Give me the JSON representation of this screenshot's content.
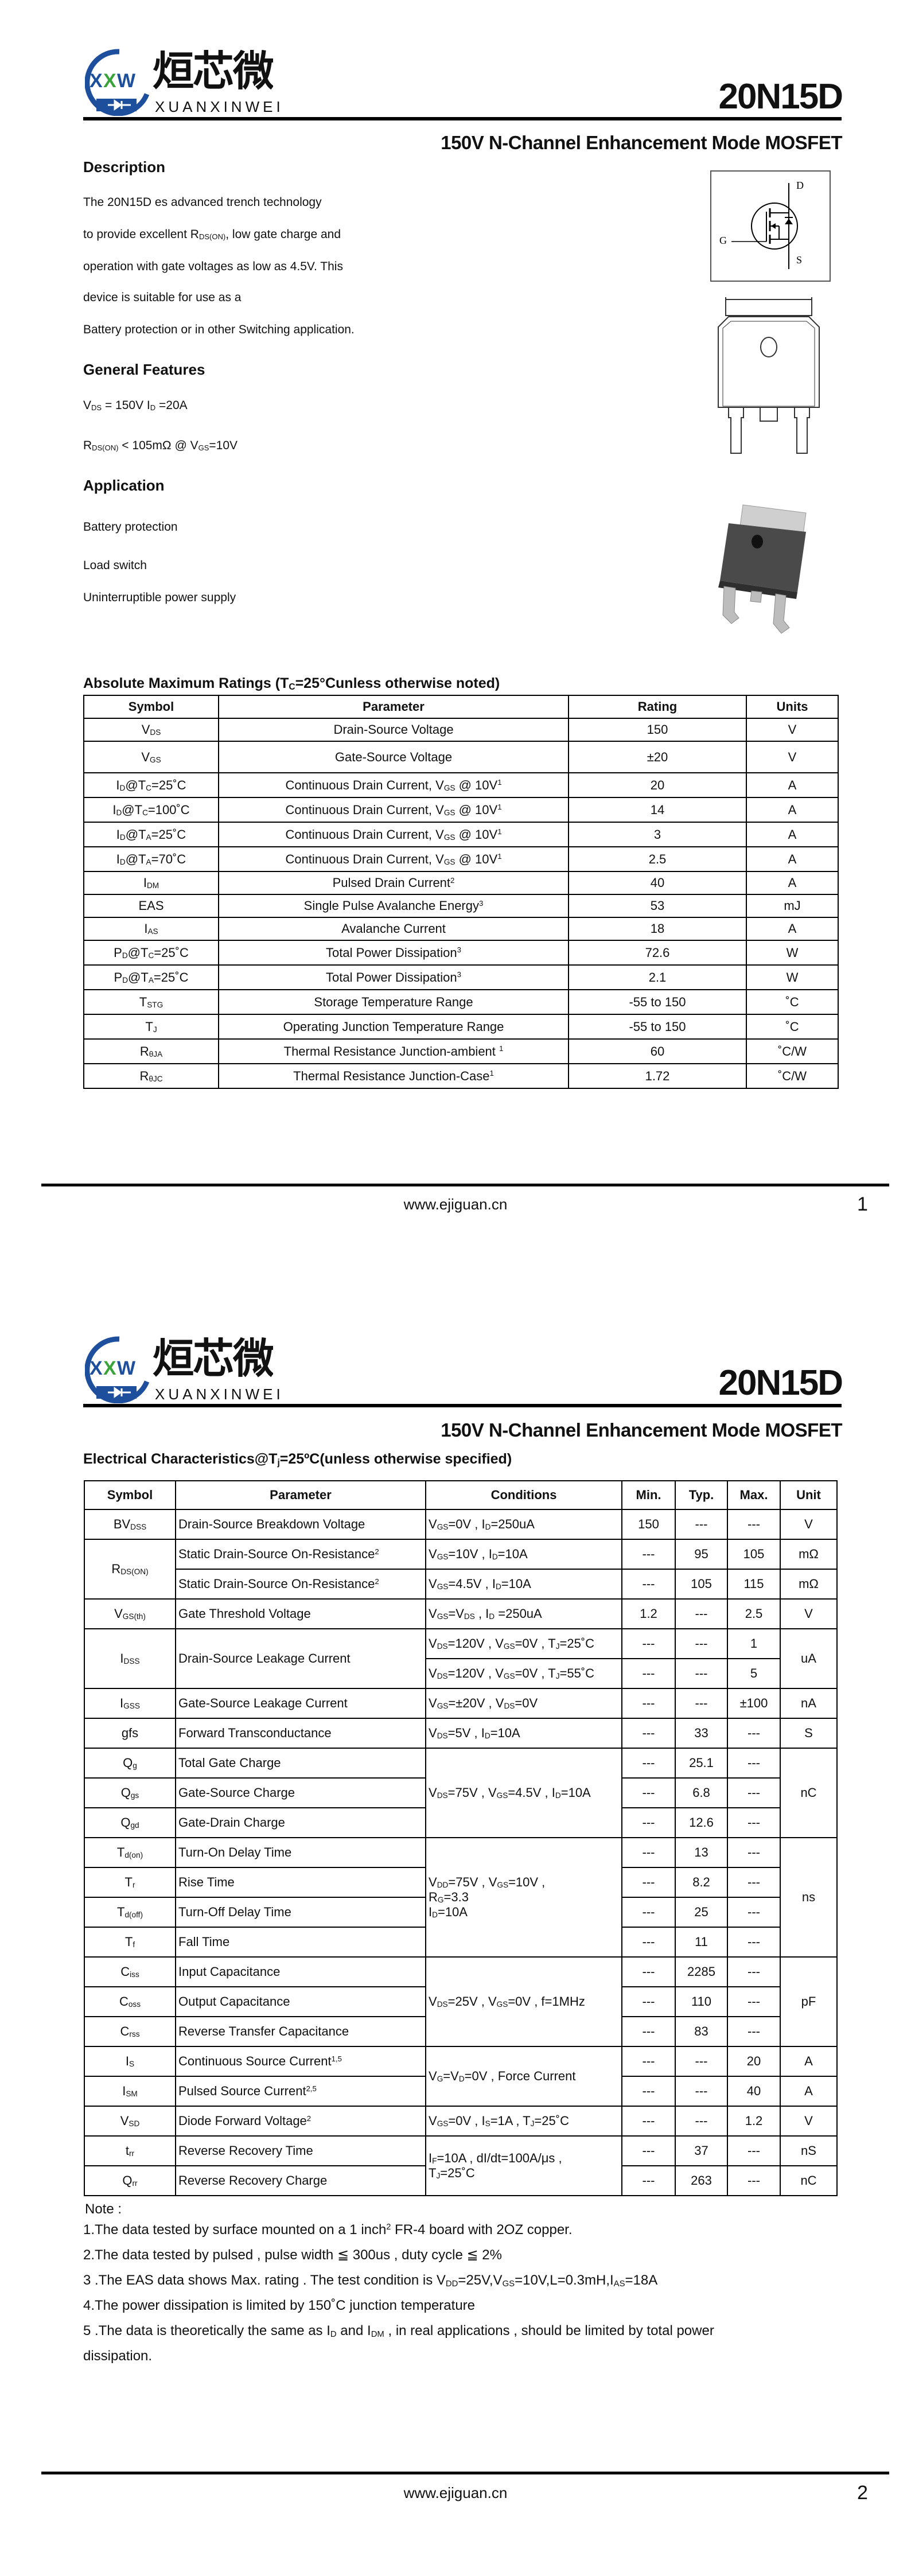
{
  "logo": {
    "cn": "烜芯微",
    "en": "XUANXINWEI",
    "mark": "XXW",
    "blue": "#1d4f9c",
    "green": "#3aa33a"
  },
  "part_number": "20N15D",
  "subtitle": "150V N-Channel Enhancement Mode MOSFET",
  "page1": {
    "description": {
      "heading": "Description",
      "lines": [
        "The  20N15D es advanced trench technology",
        "to provide excellent R_{DS(ON)}, low gate charge and",
        "operation with gate voltages as low as 4.5V. This",
        "device is suitable for use as a",
        "Battery protection or in other Switching application."
      ]
    },
    "features": {
      "heading": "General Features",
      "lines": [
        "V_{DS} = 150V  I_{D} =20A",
        "R_{DS(ON)} < 105mΩ @ V_{GS}=10V"
      ]
    },
    "application": {
      "heading": "Application",
      "items": [
        "Battery protection",
        "Load switch",
        "Uninterruptible power supply"
      ]
    },
    "symbol_labels": {
      "drain": "D",
      "gate": "G",
      "source": "S"
    },
    "abs_max": {
      "title": "Absolute Maximum Ratings (T_{C}=25°Cunless otherwise noted)",
      "headers": [
        "Symbol",
        "Parameter",
        "Rating",
        "Units"
      ],
      "rows": [
        [
          "V_{DS}",
          "Drain-Source Voltage",
          "150",
          "V"
        ],
        [
          "V_{GS}",
          "Gate-Source Voltage",
          "±20",
          "V"
        ],
        [
          "I_{D}@T_{C}=25˚C",
          "Continuous Drain Current, V_{GS} @ 10V^{1}",
          "20",
          "A"
        ],
        [
          "I_{D}@T_{C}=100˚C",
          "Continuous Drain Current, V_{GS} @ 10V^{1}",
          "14",
          "A"
        ],
        [
          "I_{D}@T_{A}=25˚C",
          "Continuous Drain Current, V_{GS} @ 10V^{1}",
          "3",
          "A"
        ],
        [
          "I_{D}@T_{A}=70˚C",
          "Continuous Drain Current, V_{GS} @ 10V^{1}",
          "2.5",
          "A"
        ],
        [
          "I_{DM}",
          "Pulsed Drain Current^{2}",
          "40",
          "A"
        ],
        [
          "EAS",
          "Single Pulse Avalanche Energy^{3}",
          "53",
          "mJ"
        ],
        [
          "I_{AS}",
          "Avalanche Current",
          "18",
          "A"
        ],
        [
          "P_{D}@T_{C}=25˚C",
          "Total Power Dissipation^{3}",
          "72.6",
          "W"
        ],
        [
          "P_{D}@T_{A}=25˚C",
          "Total Power Dissipation^{3}",
          "2.1",
          "W"
        ],
        [
          "T_{STG}",
          "Storage Temperature Range",
          "-55 to 150",
          "˚C"
        ],
        [
          "T_{J}",
          "Operating Junction Temperature Range",
          "-55 to 150",
          "˚C"
        ],
        [
          "R_{θJA}",
          "Thermal Resistance Junction-ambient ^{1}",
          "60",
          "˚C/W"
        ],
        [
          "R_{θJC}",
          "Thermal Resistance Junction-Case^{1}",
          "1.72",
          "˚C/W"
        ]
      ]
    },
    "footer": {
      "url": "www.ejiguan.cn",
      "page": "1"
    }
  },
  "page2": {
    "elec": {
      "title": "Electrical Characteristics@T_{j}=25ºC(unless otherwise specified)",
      "headers": [
        "Symbol",
        "Parameter",
        "Conditions",
        "Min.",
        "Typ.",
        "Max.",
        "Unit"
      ],
      "rows": [
        [
          "BV_{DSS}",
          "Drain-Source Breakdown Voltage",
          "V_{GS}=0V , I_{D}=250uA",
          "150",
          "---",
          "---",
          "V"
        ],
        [
          "R_{DS(ON)}",
          "Static Drain-Source On-Resistance^{2}",
          "V_{GS}=10V , I_{D}=10A",
          "---",
          "95",
          "105",
          "mΩ"
        ],
        [
          null,
          "Static Drain-Source On-Resistance^{2}",
          "V_{GS}=4.5V , I_{D}=10A",
          "---",
          "105",
          "115",
          "mΩ"
        ],
        [
          "V_{GS(th)}",
          "Gate Threshold Voltage",
          "V_{GS}=V_{DS} , I_{D} =250uA",
          "1.2",
          "---",
          "2.5",
          "V"
        ],
        [
          "I_{DSS}",
          "Drain-Source Leakage Current",
          "V_{DS}=120V , V_{GS}=0V , T_{J}=25˚C",
          "---",
          "---",
          "1",
          "uA"
        ],
        [
          null,
          null,
          "V_{DS}=120V , V_{GS}=0V , T_{J}=55˚C",
          "---",
          "---",
          "5",
          null
        ],
        [
          "I_{GSS}",
          "Gate-Source Leakage Current",
          "V_{GS}=±20V , V_{DS}=0V",
          "---",
          "---",
          "±100",
          "nA"
        ],
        [
          "gfs",
          "Forward Transconductance",
          "V_{DS}=5V , I_{D}=10A",
          "---",
          "33",
          "---",
          "S"
        ],
        [
          "Q_{g}",
          "Total Gate Charge",
          "V_{DS}=75V , V_{GS}=4.5V , I_{D}=10A",
          "---",
          "25.1",
          "---",
          "nC"
        ],
        [
          "Q_{gs}",
          "Gate-Source Charge",
          null,
          "---",
          "6.8",
          "---",
          null
        ],
        [
          "Q_{gd}",
          "Gate-Drain Charge",
          null,
          "---",
          "12.6",
          "---",
          null
        ],
        [
          "T_{d(on)}",
          "Turn-On Delay Time",
          "V_{DD}=75V , V_{GS}=10V ,\nR_{G}=3.3\nI_{D}=10A",
          "---",
          "13",
          "---",
          "ns"
        ],
        [
          "T_{r}",
          "Rise Time",
          null,
          "---",
          "8.2",
          "---",
          null
        ],
        [
          "T_{d(off)}",
          "Turn-Off Delay Time",
          null,
          "---",
          "25",
          "---",
          null
        ],
        [
          "T_{f}",
          "Fall Time",
          null,
          "---",
          "11",
          "---",
          null
        ],
        [
          "C_{iss}",
          "Input Capacitance",
          "V_{DS}=25V , V_{GS}=0V , f=1MHz",
          "---",
          "2285",
          "---",
          "pF"
        ],
        [
          "C_{oss}",
          "Output Capacitance",
          null,
          "---",
          "110",
          "---",
          null
        ],
        [
          "C_{rss}",
          "Reverse Transfer Capacitance",
          null,
          "---",
          "83",
          "---",
          null
        ],
        [
          "I_{S}",
          "Continuous Source Current^{1,5}",
          "V_{G}=V_{D}=0V , Force Current",
          "---",
          "---",
          "20",
          "A"
        ],
        [
          "I_{SM}",
          "Pulsed Source Current^{2,5}",
          null,
          "---",
          "---",
          "40",
          "A"
        ],
        [
          "V_{SD}",
          "Diode Forward Voltage^{2}",
          "V_{GS}=0V , I_{S}=1A , T_{J}=25˚C",
          "---",
          "---",
          "1.2",
          "V"
        ],
        [
          "t_{rr}",
          "Reverse Recovery Time",
          "I_{F}=10A , dI/dt=100A/μs ,\nT_{J}=25˚C",
          "---",
          "37",
          "---",
          "nS"
        ],
        [
          "Q_{rr}",
          "Reverse Recovery Charge",
          null,
          "---",
          "263",
          "---",
          "nC"
        ]
      ]
    },
    "notes": {
      "heading": "Note :",
      "items": [
        "1.The data tested by surface mounted on a 1 inch^{2} FR-4 board with 2OZ copper.",
        "2.The data tested by pulsed , pulse width ≦ 300us , duty cycle ≦ 2%",
        "3 .The EAS data shows Max. rating . The test condition is V_{DD}=25V,V_{GS}=10V,L=0.3mH,I_{AS}=18A",
        "4.The power dissipation is limited by 150˚C junction temperature",
        "5 .The data is theoretically the same as I_{D} and I_{DM} , in real applications , should be limited by total power",
        "dissipation."
      ]
    },
    "footer": {
      "url": "www.ejiguan.cn",
      "page": "2"
    }
  }
}
